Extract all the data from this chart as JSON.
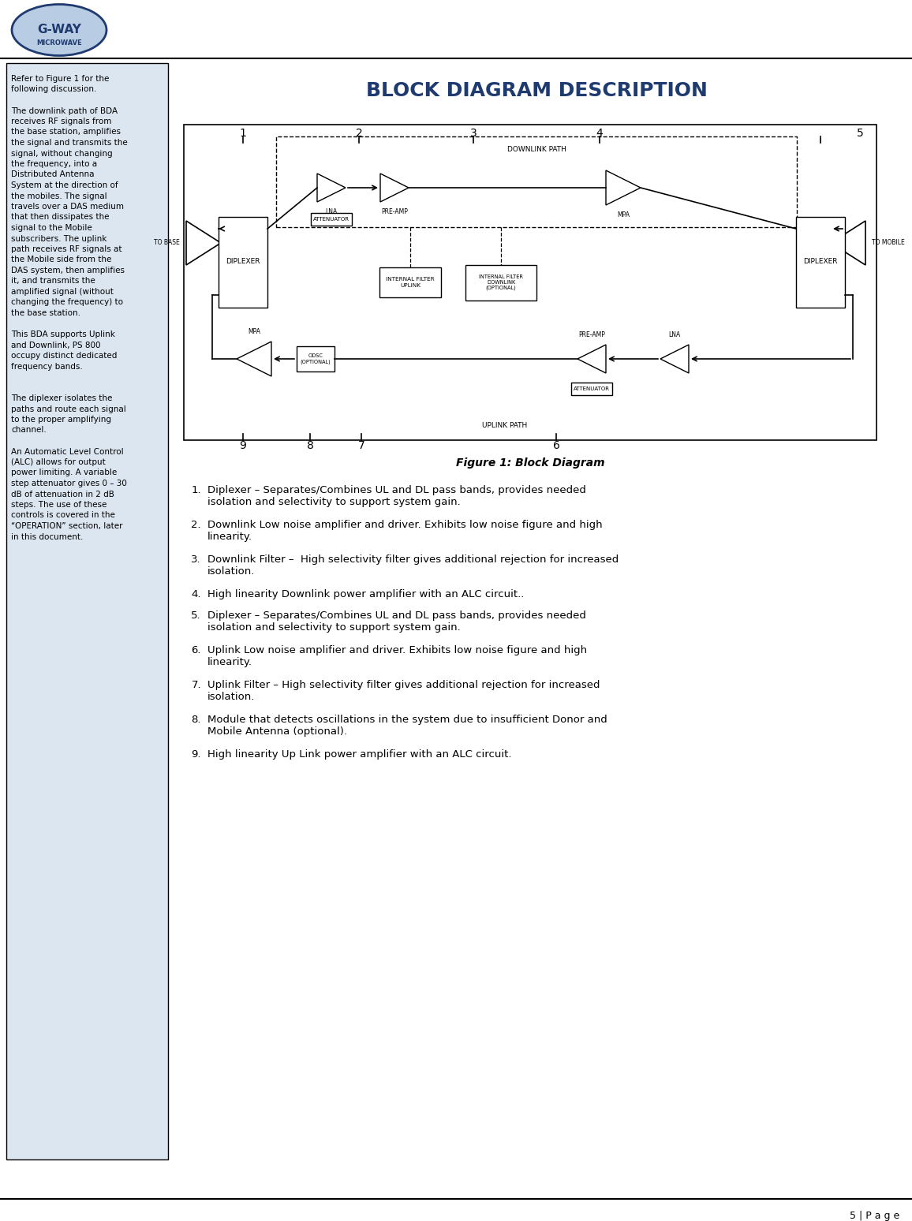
{
  "title": "BLOCK DIAGRAM DESCRIPTION",
  "title_color": "#1F3A6E",
  "figure_caption": "Figure 1: Block Diagram",
  "numbered_items": [
    "Diplexer – Separates/Combines UL and DL pass bands, provides needed isolation and selectivity to support system gain.",
    "Downlink Low noise amplifier and driver. Exhibits low noise figure and high linearity.",
    "Downlink Filter –  High selectivity filter gives additional rejection for increased isolation.",
    "High linearity Downlink power amplifier with an ALC circuit..",
    "Diplexer – Separates/Combines UL and DL pass bands, provides needed isolation and selectivity to support system gain.",
    "Uplink Low noise amplifier and driver. Exhibits low noise figure and high linearity.",
    "Uplink Filter – High selectivity filter gives additional rejection for increased isolation.",
    "Module that detects oscillations in the system due to insufficient Donor and Mobile Antenna (optional).",
    "High linearity Up Link power amplifier with an ALC circuit."
  ],
  "page_number": "5 | P a g e",
  "bg_color": "#ffffff",
  "left_box_bg": "#dce6f1",
  "left_box_border": "#000000",
  "left_lines": [
    "Refer to Figure 1 for the",
    "following discussion.",
    "",
    "The downlink path of BDA",
    "receives RF signals from",
    "the base station, amplifies",
    "the signal and transmits the",
    "signal, without changing",
    "the frequency, into a",
    "Distributed Antenna",
    "System at the direction of",
    "the mobiles. The signal",
    "travels over a DAS medium",
    "that then dissipates the",
    "signal to the Mobile",
    "subscribers. The uplink",
    "path receives RF signals at",
    "the Mobile side from the",
    "DAS system, then amplifies",
    "it, and transmits the",
    "amplified signal (without",
    "changing the frequency) to",
    "the base station.",
    "",
    "This BDA supports Uplink",
    "and Downlink, PS 800",
    "occupy distinct dedicated",
    "frequency bands.",
    "",
    "",
    "The diplexer isolates the",
    "paths and route each signal",
    "to the proper amplifying",
    "channel.",
    "",
    "An Automatic Level Control",
    "(ALC) allows for output",
    "power limiting. A variable",
    "step attenuator gives 0 – 30",
    "dB of attenuation in 2 dB",
    "steps. The use of these",
    "controls is covered in the",
    "“OPERATION” section, later",
    "in this document."
  ],
  "item_texts": [
    [
      1,
      "Diplexer – Separates/Combines UL and DL pass bands, provides needed\nisolation and selectivity to support system gain."
    ],
    [
      2,
      "Downlink Low noise amplifier and driver. Exhibits low noise figure and high\nlinearity."
    ],
    [
      3,
      "Downlink Filter –  High selectivity filter gives additional rejection for increased\nisolation."
    ],
    [
      4,
      "High linearity Downlink power amplifier with an ALC circuit.."
    ],
    [
      5,
      "Diplexer – Separates/Combines UL and DL pass bands, provides needed\nisolation and selectivity to support system gain."
    ],
    [
      6,
      "Uplink Low noise amplifier and driver. Exhibits low noise figure and high\nlinearity."
    ],
    [
      7,
      "Uplink Filter – High selectivity filter gives additional rejection for increased\nisolation."
    ],
    [
      8,
      "Module that detects oscillations in the system due to insufficient Donor and\nMobile Antenna (optional)."
    ],
    [
      9,
      "High linearity Up Link power amplifier with an ALC circuit."
    ]
  ]
}
